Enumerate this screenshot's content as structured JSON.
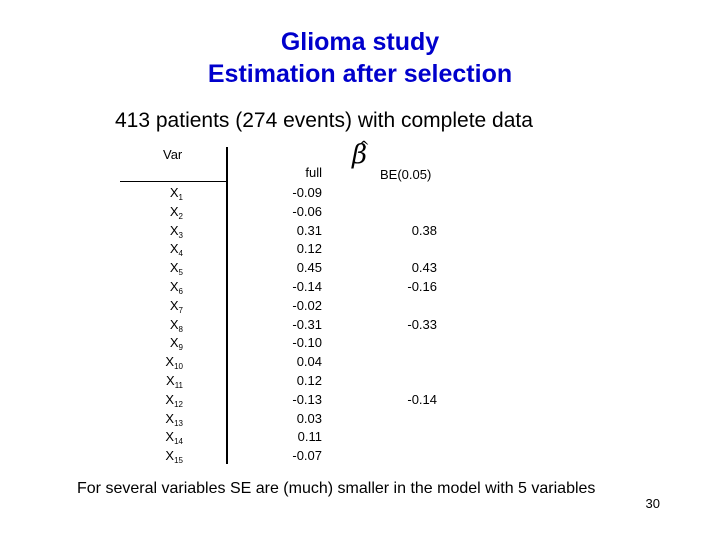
{
  "title_line1": "Glioma study",
  "title_line2": "Estimation after selection",
  "subtitle": "413 patients (274 events) with complete data",
  "table": {
    "header_var": "Var",
    "header_full": "full",
    "header_beta": "β",
    "header_beta_hat": "^",
    "header_be": "BE(0.05)",
    "rows": [
      {
        "var": "X",
        "sub": "1",
        "full": "-0.09",
        "be": ""
      },
      {
        "var": "X",
        "sub": "2",
        "full": "-0.06",
        "be": ""
      },
      {
        "var": "X",
        "sub": "3",
        "full": "0.31",
        "be": "0.38"
      },
      {
        "var": "X",
        "sub": "4",
        "full": "0.12",
        "be": ""
      },
      {
        "var": "X",
        "sub": "5",
        "full": "0.45",
        "be": "0.43"
      },
      {
        "var": "X",
        "sub": "6",
        "full": "-0.14",
        "be": "-0.16"
      },
      {
        "var": "X",
        "sub": "7",
        "full": "-0.02",
        "be": ""
      },
      {
        "var": "X",
        "sub": "8",
        "full": "-0.31",
        "be": "-0.33"
      },
      {
        "var": "X",
        "sub": "9",
        "full": "-0.10",
        "be": ""
      },
      {
        "var": "X",
        "sub": "10",
        "full": "0.04",
        "be": ""
      },
      {
        "var": "X",
        "sub": "11",
        "full": "0.12",
        "be": ""
      },
      {
        "var": "X",
        "sub": "12",
        "full": "-0.13",
        "be": "-0.14"
      },
      {
        "var": "X",
        "sub": "13",
        "full": "0.03",
        "be": ""
      },
      {
        "var": "X",
        "sub": "14",
        "full": "0.11",
        "be": ""
      },
      {
        "var": "X",
        "sub": "15",
        "full": "-0.07",
        "be": ""
      }
    ]
  },
  "footer": "For several variables SE are (much) smaller in the model with 5 variables",
  "page_number": "30",
  "colors": {
    "title": "#0000cc",
    "text": "#000000",
    "background": "#ffffff"
  }
}
